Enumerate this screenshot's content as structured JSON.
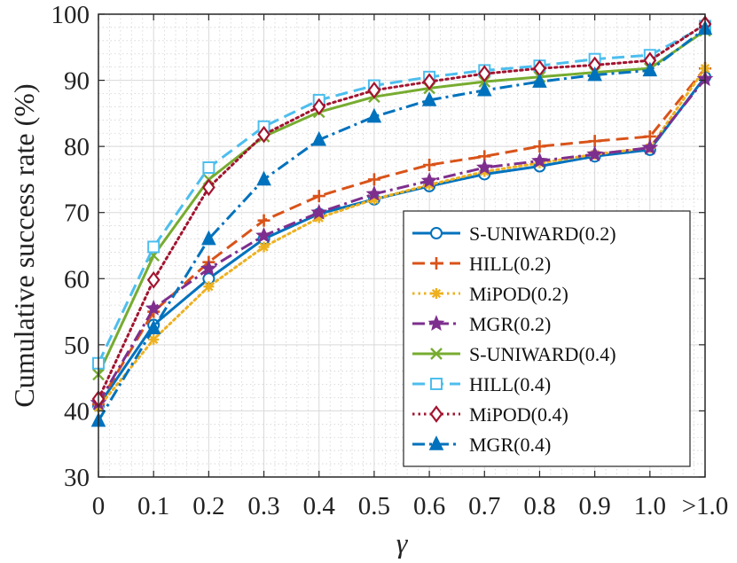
{
  "chart_data": {
    "type": "line",
    "title": "",
    "xlabel": "γ",
    "ylabel": "Cumulative success rate (%)",
    "categories": [
      "0",
      "0.1",
      "0.2",
      "0.3",
      "0.4",
      "0.5",
      "0.6",
      "0.7",
      "0.8",
      "0.9",
      "1.0",
      ">1.0"
    ],
    "ylim": [
      30,
      100
    ],
    "yticks": [
      "30",
      "40",
      "50",
      "60",
      "70",
      "80",
      "90",
      "100"
    ],
    "grid": true,
    "legend_position": "lower-right",
    "series": [
      {
        "name": "S-UNIWARD(0.2)",
        "color": "#0072BD",
        "line": "solid",
        "marker": "circle",
        "values": [
          40.8,
          53.0,
          60.0,
          66.0,
          69.8,
          72.0,
          74.0,
          75.8,
          77.0,
          78.5,
          79.5,
          90.5
        ]
      },
      {
        "name": "HILL(0.2)",
        "color": "#D95319",
        "line": "dashed",
        "marker": "plus",
        "values": [
          41.0,
          55.0,
          62.5,
          68.8,
          72.5,
          75.0,
          77.2,
          78.5,
          80.0,
          80.8,
          81.5,
          91.8
        ]
      },
      {
        "name": "MiPOD(0.2)",
        "color": "#EDB120",
        "line": "dotted",
        "marker": "asterisk",
        "values": [
          40.5,
          50.8,
          58.8,
          64.8,
          69.2,
          72.0,
          74.2,
          76.2,
          77.5,
          78.8,
          79.8,
          91.8
        ]
      },
      {
        "name": "MGR(0.2)",
        "color": "#7E2F8E",
        "line": "dashdot",
        "marker": "star",
        "values": [
          41.2,
          55.5,
          61.5,
          66.5,
          70.0,
          72.8,
          74.8,
          76.8,
          77.8,
          78.8,
          79.8,
          90.2
        ]
      },
      {
        "name": "S-UNIWARD(0.4)",
        "color": "#77AC30",
        "line": "solid",
        "marker": "cross",
        "values": [
          45.5,
          63.5,
          75.0,
          81.5,
          85.2,
          87.5,
          88.8,
          89.8,
          90.5,
          91.2,
          91.8,
          97.5
        ]
      },
      {
        "name": "HILL(0.4)",
        "color": "#4DBEEE",
        "line": "dashed",
        "marker": "square",
        "values": [
          47.2,
          64.8,
          76.8,
          83.0,
          87.0,
          89.2,
          90.5,
          91.5,
          92.2,
          93.2,
          93.8,
          98.2
        ]
      },
      {
        "name": "MiPOD(0.4)",
        "color": "#A2142F",
        "line": "dotted",
        "marker": "diamond",
        "values": [
          41.8,
          59.8,
          73.8,
          81.8,
          86.0,
          88.5,
          89.8,
          91.0,
          91.8,
          92.3,
          93.0,
          98.5
        ]
      },
      {
        "name": "MGR(0.4)",
        "color": "#0072BD",
        "line": "dashdot",
        "marker": "triangle",
        "values": [
          38.5,
          52.5,
          66.0,
          75.0,
          81.0,
          84.5,
          87.0,
          88.5,
          89.8,
          90.8,
          91.5,
          97.8
        ]
      }
    ]
  }
}
